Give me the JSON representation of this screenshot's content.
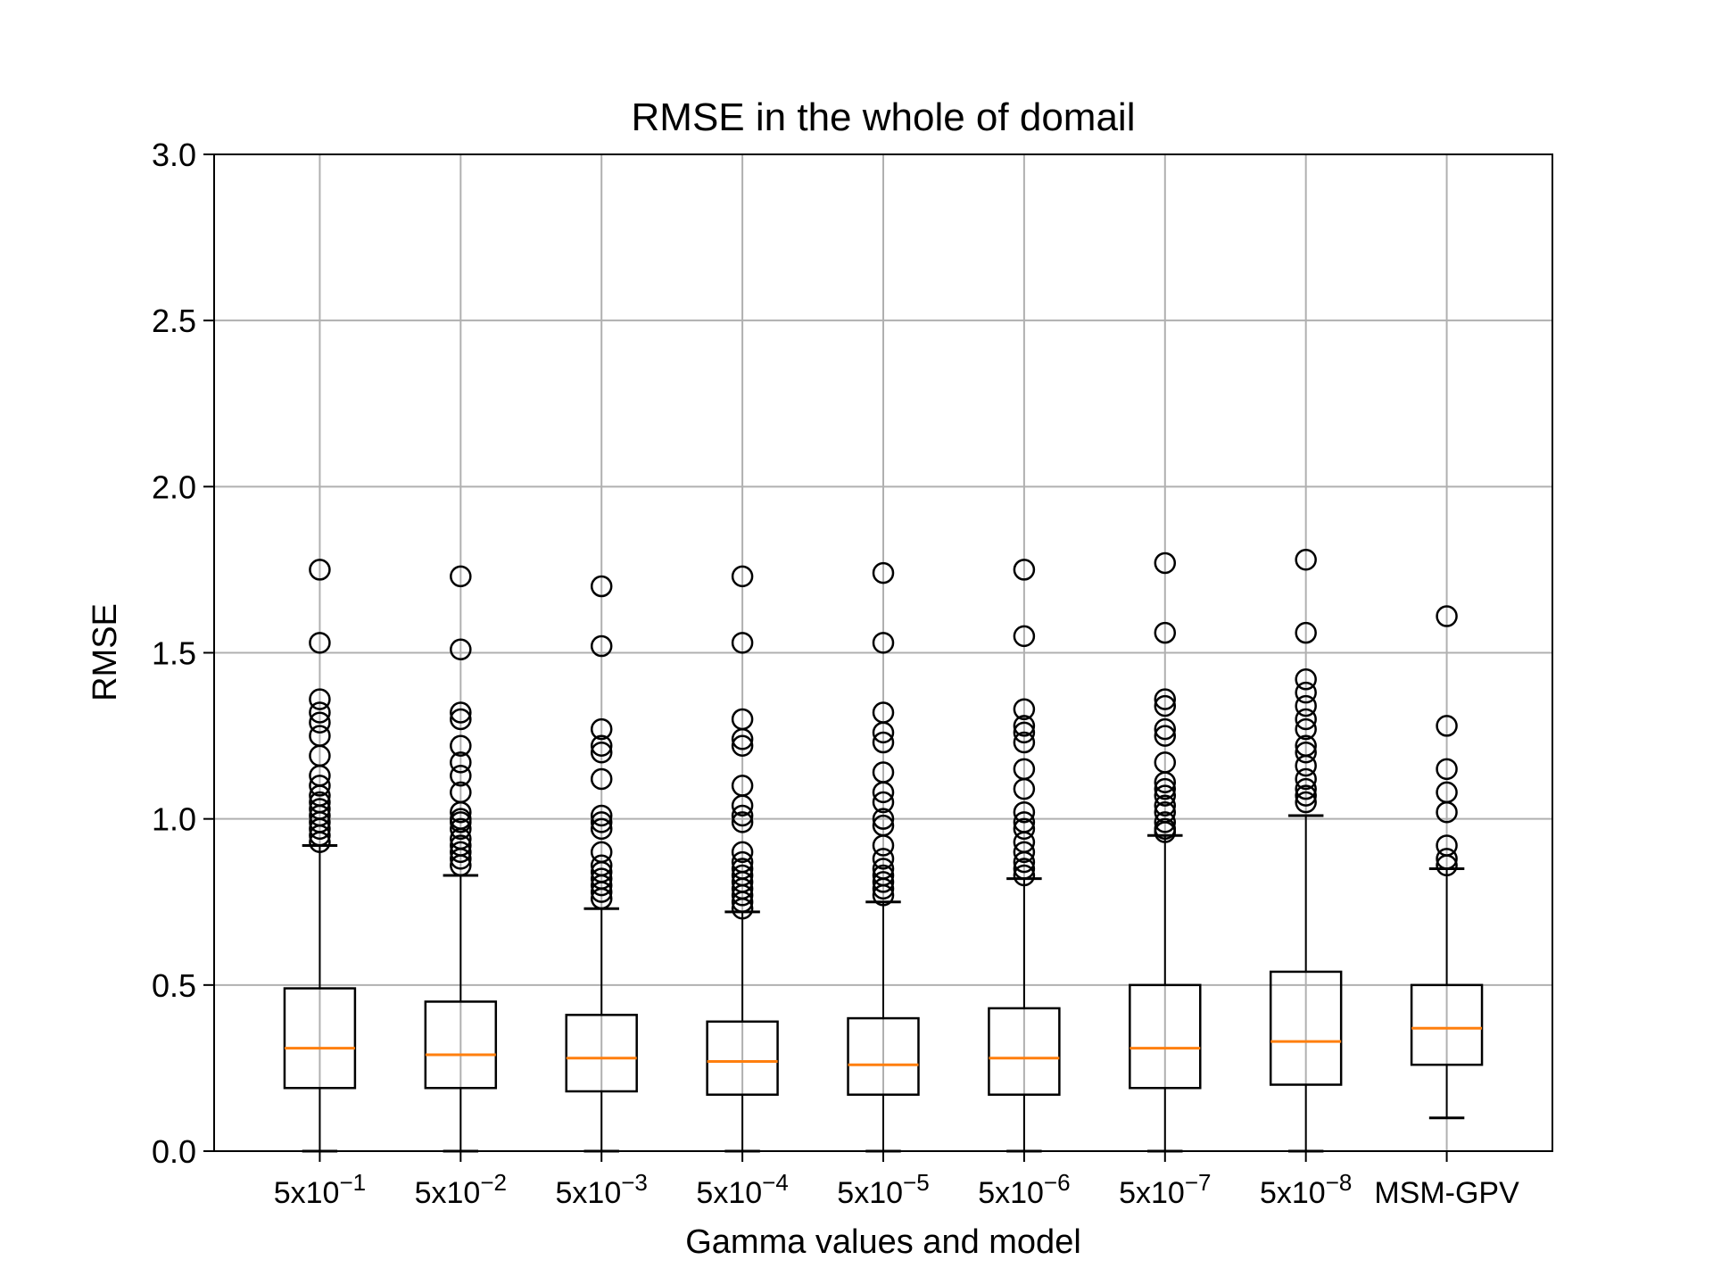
{
  "chart_data": {
    "type": "box",
    "title": "RMSE in the whole of domail",
    "xlabel": "Gamma values and model",
    "ylabel": "RMSE",
    "ylim": [
      0.0,
      3.0
    ],
    "yticks": [
      {
        "value": 0.0,
        "label": "0.0"
      },
      {
        "value": 0.5,
        "label": "0.5"
      },
      {
        "value": 1.0,
        "label": "1.0"
      },
      {
        "value": 1.5,
        "label": "1.5"
      },
      {
        "value": 2.0,
        "label": "2.0"
      },
      {
        "value": 2.5,
        "label": "2.5"
      },
      {
        "value": 3.0,
        "label": "3.0"
      }
    ],
    "grid": true,
    "colors": {
      "box": "#000000",
      "median": "#ff7f0e",
      "grid": "#b0b0b0",
      "flier": "#000000"
    },
    "boxes": [
      {
        "label_base": "5x10",
        "label_exp": "−1",
        "whislo": 0.0,
        "q1": 0.19,
        "med": 0.31,
        "q3": 0.49,
        "whishi": 0.92,
        "fliers": [
          1.75,
          1.53,
          1.36,
          1.32,
          1.29,
          1.25,
          1.19,
          1.13,
          1.1,
          1.07,
          1.05,
          1.03,
          1.01,
          0.99,
          0.97,
          0.95,
          0.93
        ]
      },
      {
        "label_base": "5x10",
        "label_exp": "−2",
        "whislo": 0.0,
        "q1": 0.19,
        "med": 0.29,
        "q3": 0.45,
        "whishi": 0.83,
        "fliers": [
          1.73,
          1.51,
          1.32,
          1.3,
          1.22,
          1.17,
          1.13,
          1.08,
          1.02,
          1.0,
          0.99,
          0.97,
          0.94,
          0.92,
          0.9,
          0.88,
          0.86
        ]
      },
      {
        "label_base": "5x10",
        "label_exp": "−3",
        "whislo": 0.0,
        "q1": 0.18,
        "med": 0.28,
        "q3": 0.41,
        "whishi": 0.73,
        "fliers": [
          1.7,
          1.52,
          1.27,
          1.22,
          1.2,
          1.12,
          1.01,
          0.99,
          0.97,
          0.9,
          0.86,
          0.84,
          0.82,
          0.8,
          0.78,
          0.76
        ]
      },
      {
        "label_base": "5x10",
        "label_exp": "−4",
        "whislo": 0.0,
        "q1": 0.17,
        "med": 0.27,
        "q3": 0.39,
        "whishi": 0.72,
        "fliers": [
          1.73,
          1.53,
          1.3,
          1.24,
          1.22,
          1.1,
          1.04,
          1.01,
          0.99,
          0.9,
          0.87,
          0.85,
          0.83,
          0.81,
          0.79,
          0.77,
          0.75,
          0.73
        ]
      },
      {
        "label_base": "5x10",
        "label_exp": "−5",
        "whislo": 0.0,
        "q1": 0.17,
        "med": 0.26,
        "q3": 0.4,
        "whishi": 0.75,
        "fliers": [
          1.74,
          1.53,
          1.32,
          1.26,
          1.23,
          1.14,
          1.08,
          1.05,
          1.0,
          0.98,
          0.92,
          0.88,
          0.85,
          0.83,
          0.81,
          0.79,
          0.77
        ]
      },
      {
        "label_base": "5x10",
        "label_exp": "−6",
        "whislo": 0.0,
        "q1": 0.17,
        "med": 0.28,
        "q3": 0.43,
        "whishi": 0.82,
        "fliers": [
          1.75,
          1.55,
          1.33,
          1.28,
          1.26,
          1.23,
          1.15,
          1.09,
          1.02,
          0.99,
          0.97,
          0.93,
          0.9,
          0.87,
          0.85,
          0.83
        ]
      },
      {
        "label_base": "5x10",
        "label_exp": "−7",
        "whislo": 0.0,
        "q1": 0.19,
        "med": 0.31,
        "q3": 0.5,
        "whishi": 0.95,
        "fliers": [
          1.77,
          1.56,
          1.36,
          1.34,
          1.27,
          1.25,
          1.17,
          1.11,
          1.09,
          1.07,
          1.04,
          1.02,
          0.99,
          0.97,
          0.96
        ]
      },
      {
        "label_base": "5x10",
        "label_exp": "−8",
        "whislo": 0.0,
        "q1": 0.2,
        "med": 0.33,
        "q3": 0.54,
        "whishi": 1.01,
        "fliers": [
          1.78,
          1.56,
          1.42,
          1.38,
          1.34,
          1.3,
          1.27,
          1.22,
          1.2,
          1.16,
          1.12,
          1.09,
          1.07,
          1.05
        ]
      },
      {
        "label_base": "MSM-GPV",
        "label_exp": "",
        "whislo": 0.1,
        "q1": 0.26,
        "med": 0.37,
        "q3": 0.5,
        "whishi": 0.85,
        "fliers": [
          1.61,
          1.28,
          1.15,
          1.08,
          1.02,
          0.92,
          0.88,
          0.86
        ]
      }
    ]
  }
}
